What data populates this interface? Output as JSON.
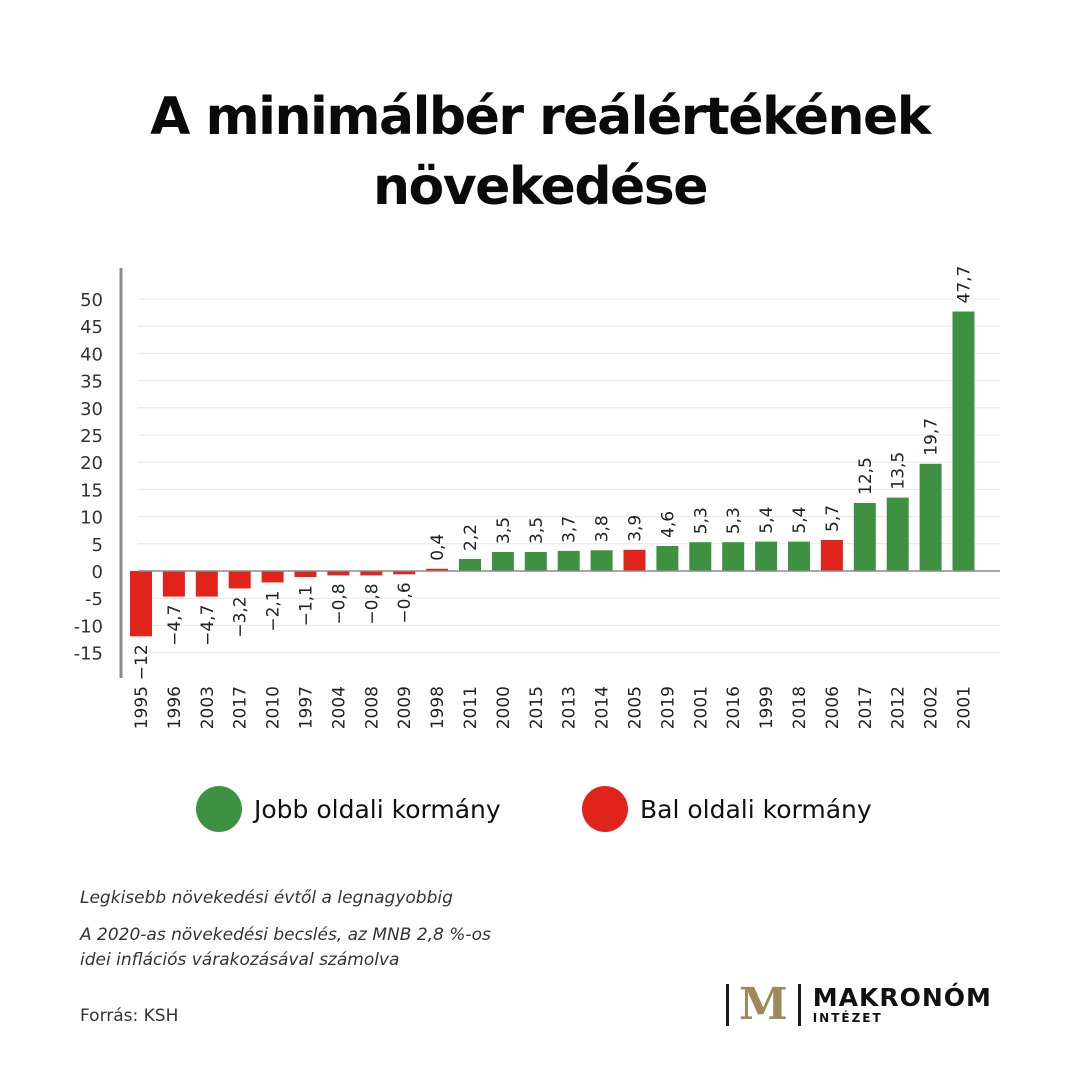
{
  "header": {
    "title_line1": "A minimálbér reálértékének",
    "title_line2": "növekedése"
  },
  "chart_data": {
    "type": "bar",
    "categories": [
      "1995",
      "1996",
      "2003",
      "2017",
      "2010",
      "1997",
      "2004",
      "2008",
      "2009",
      "1998",
      "2011",
      "2000",
      "2015",
      "2013",
      "2014",
      "2005",
      "2019",
      "2001",
      "2016",
      "1999",
      "2018",
      "2006",
      "2017",
      "2012",
      "2002",
      "2001"
    ],
    "values": [
      -12,
      -4.7,
      -4.7,
      -3.2,
      -2.1,
      -1.1,
      -0.8,
      -0.8,
      -0.6,
      0.4,
      2.2,
      3.5,
      3.5,
      3.7,
      3.8,
      3.9,
      4.6,
      5.3,
      5.3,
      5.4,
      5.4,
      5.7,
      12.5,
      13.5,
      19.7,
      47.7
    ],
    "data_labels": [
      "−12",
      "−4,7",
      "−4,7",
      "−3,2",
      "−2,1",
      "−1,1",
      "−0,8",
      "−0,8",
      "−0,6",
      "0,4",
      "2,2",
      "3,5",
      "3,5",
      "3,7",
      "3,8",
      "3,9",
      "4,6",
      "5,3",
      "5,3",
      "5,4",
      "5,4",
      "5,7",
      "12,5",
      "13,5",
      "19,7",
      "47,7"
    ],
    "groups": [
      "bal",
      "bal",
      "bal",
      "bal",
      "bal",
      "bal",
      "bal",
      "bal",
      "bal",
      "bal",
      "jobb",
      "jobb",
      "jobb",
      "jobb",
      "jobb",
      "bal",
      "jobb",
      "jobb",
      "jobb",
      "jobb",
      "jobb",
      "bal",
      "jobb",
      "jobb",
      "jobb",
      "jobb"
    ],
    "yticks": [
      50,
      45,
      40,
      35,
      30,
      25,
      20,
      15,
      10,
      5,
      0,
      -5,
      -10,
      -15
    ],
    "ytick_labels": [
      "50",
      "45",
      "40",
      "35",
      "30",
      "25",
      "20",
      "15",
      "10",
      "5",
      "0",
      "-5",
      "-10",
      "-15"
    ],
    "ylim": [
      -19,
      56
    ],
    "grid": true,
    "legend_position": "bottom",
    "title": "",
    "xlabel": "",
    "ylabel": ""
  },
  "legend": {
    "items": [
      {
        "label": "Jobb oldali kormány",
        "color": "#3f9142"
      },
      {
        "label": "Bal oldali kormány",
        "color": "#e0241b"
      }
    ]
  },
  "colors": {
    "jobb": "#3f9142",
    "bal": "#e0241b",
    "grid": "#e6e6e6",
    "axis": "#8a8a8a"
  },
  "notes": {
    "line1": "Legkisebb növekedési évtől a legnagyobbig",
    "line2a": "A 2020-as növekedési becslés, az MNB 2,8 %-os",
    "line2b": "idei inflációs várakozásával számolva"
  },
  "source": "Forrás: KSH",
  "logo": {
    "mark": "M",
    "name": "MAKRONÓM",
    "sub": "INTÉZET"
  }
}
